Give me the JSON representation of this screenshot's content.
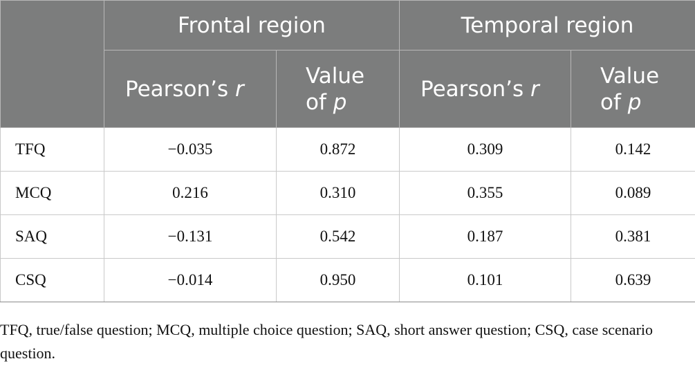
{
  "header": {
    "groups": [
      "Frontal region",
      "Temporal region"
    ],
    "subheaders": [
      {
        "prefix": "Pearson’s ",
        "italic": "r",
        "line2": ""
      },
      {
        "prefix": "Value",
        "italic": "p",
        "line2": "of "
      },
      {
        "prefix": "Pearson’s ",
        "italic": "r",
        "line2": ""
      },
      {
        "prefix": "Value",
        "italic": "p",
        "line2": "of "
      }
    ]
  },
  "rows": [
    {
      "label": "TFQ",
      "frontal_r": "−0.035",
      "frontal_p": "0.872",
      "temporal_r": "0.309",
      "temporal_p": "0.142"
    },
    {
      "label": "MCQ",
      "frontal_r": "0.216",
      "frontal_p": "0.310",
      "temporal_r": "0.355",
      "temporal_p": "0.089"
    },
    {
      "label": "SAQ",
      "frontal_r": "−0.131",
      "frontal_p": "0.542",
      "temporal_r": "0.187",
      "temporal_p": "0.381"
    },
    {
      "label": "CSQ",
      "frontal_r": "−0.014",
      "frontal_p": "0.950",
      "temporal_r": "0.101",
      "temporal_p": "0.639"
    }
  ],
  "footnote": "TFQ, true/false question; MCQ, multiple choice question; SAQ, short answer question; CSQ, case scenario question."
}
